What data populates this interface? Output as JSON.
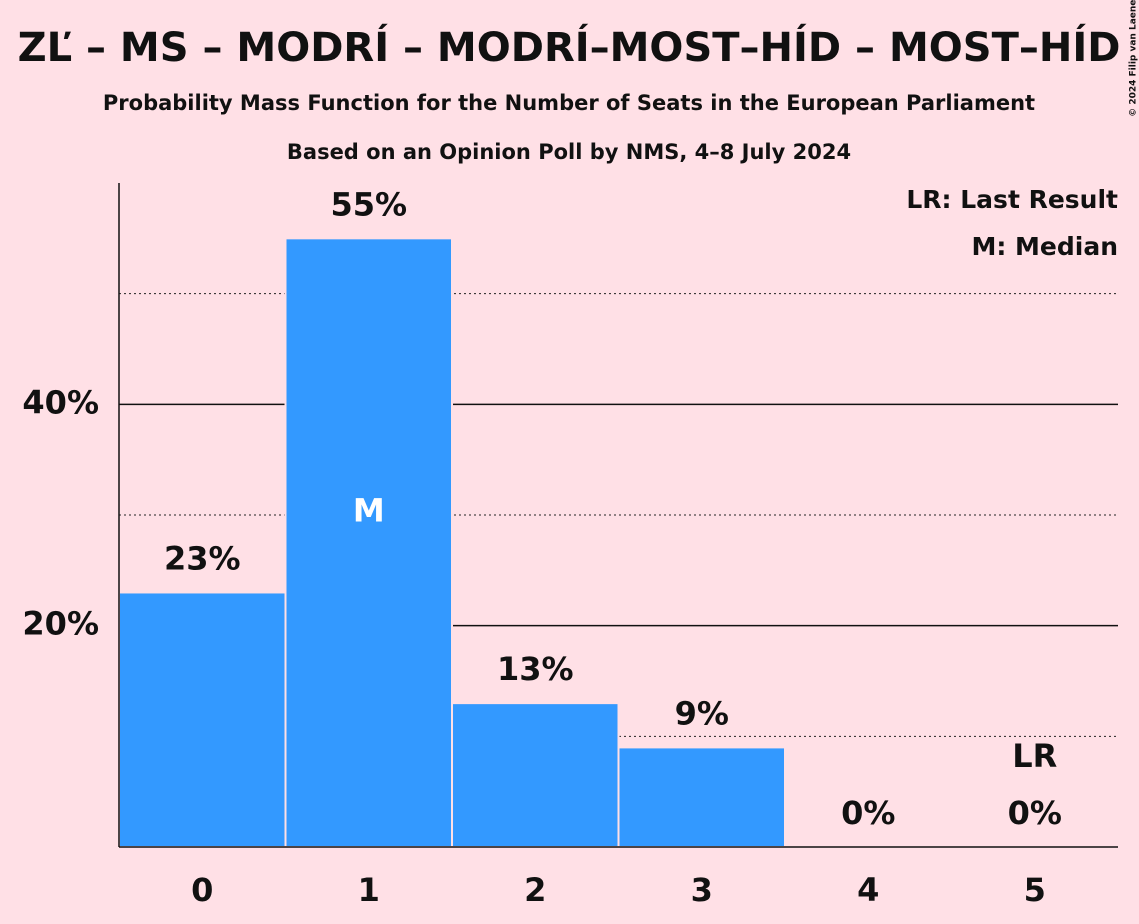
{
  "chart_data": {
    "type": "bar",
    "title": "ZĽ – MS – MODRÍ – MODRÍ–MOST–HÍD – MOST–HÍD",
    "subtitle": "Probability Mass Function for the Number of Seats in the European Parliament",
    "subtitle2": "Based on an Opinion Poll by NMS, 4–8 July 2024",
    "copyright": "© 2024 Filip van Laenen",
    "categories": [
      "0",
      "1",
      "2",
      "3",
      "4",
      "5"
    ],
    "values": [
      23,
      55,
      13,
      9,
      0,
      0
    ],
    "value_labels": [
      "23%",
      "55%",
      "13%",
      "9%",
      "0%",
      "0%"
    ],
    "inside_labels": [
      null,
      "M",
      null,
      null,
      null,
      null
    ],
    "top_labels": [
      null,
      null,
      null,
      null,
      null,
      "LR"
    ],
    "color": "#3399ff",
    "ylim": [
      0,
      60
    ],
    "yticks": [
      {
        "value": 20,
        "label": "20%"
      },
      {
        "value": 40,
        "label": "40%"
      }
    ],
    "minor_yticks": [
      10,
      30,
      50
    ],
    "grid": true,
    "legend": [
      "LR: Last Result",
      "M: Median"
    ],
    "legend_position": "top-right"
  }
}
